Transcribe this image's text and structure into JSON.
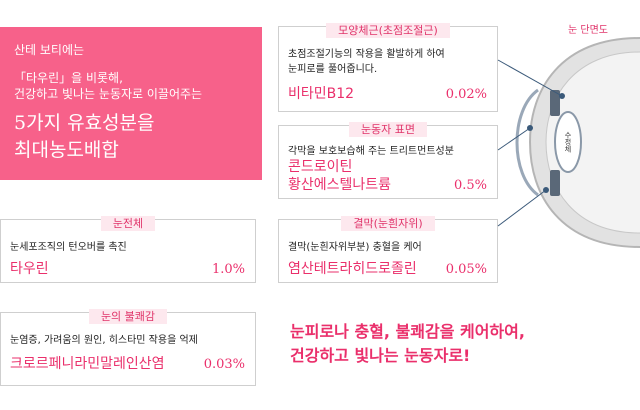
{
  "intro": {
    "line1": "산테 보티에는",
    "line2a": "「타우린」을 비롯해,",
    "line2b": "건강하고 빛나는 눈동자로 이끌어주는",
    "big1": "5가지 유효성분을",
    "big2": "최대농도배합"
  },
  "cards": {
    "ciliary": {
      "head": "모양체근(초점조절근)",
      "desc1": "초점조절기능의 작용을 활발하게 하여",
      "desc2": "눈피로를 풀어줍니다.",
      "name": "비타민B12",
      "pct": "0.02%"
    },
    "surface": {
      "head": "눈동자 표면",
      "desc": "각막을 보호보습해 주는 트리트먼트성분",
      "name1": "콘드로이틴",
      "name2": "황산에스텔나트륨",
      "pct": "0.5%"
    },
    "tissue": {
      "head": "눈전체",
      "desc": "눈세포조직의 턴오버를 촉진",
      "name": "타우린",
      "pct": "1.0%"
    },
    "conjunctiva": {
      "head": "결막(눈흰자위)",
      "desc": "결막(눈흰자위부분) 충혈을 케어",
      "name": "염산테트라히드로졸린",
      "pct": "0.05%"
    },
    "discomfort": {
      "head": "눈의 불쾌감",
      "desc": "눈염증, 가려움의 원인, 히스타민 작용을 억제",
      "name": "크로르페니라민말레인산염",
      "pct": "0.03%"
    }
  },
  "slogan": {
    "line1": "눈피로나 충혈, 불쾌감을 케어하여,",
    "line2": "건강하고 빛나는 눈동자로!"
  },
  "diagram": {
    "title": "눈 단면도",
    "lens_label": "수정체"
  },
  "colors": {
    "accent": "#ea2f6b",
    "intro_bg": "#f7618a",
    "head_bg": "#fde8ee"
  }
}
